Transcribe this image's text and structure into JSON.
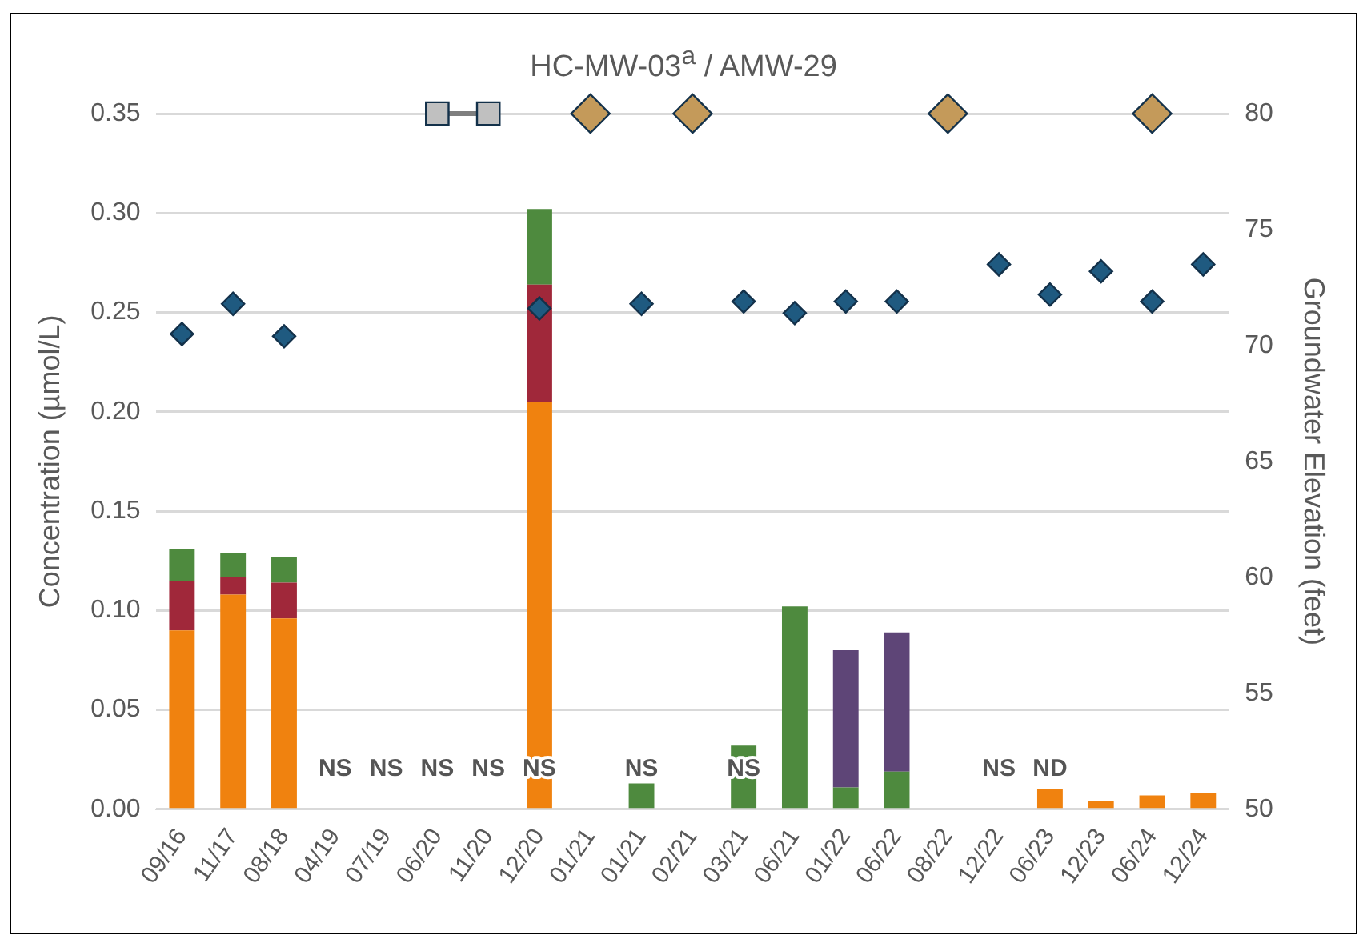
{
  "chart_data": {
    "type": "bar",
    "title": "HC-MW-03$^{a}$ / AMW-29",
    "ylabel": "Concentration (µmol/L)",
    "y2label": "Groundwater Elevation (feet)",
    "categories": [
      "09/16",
      "11/17",
      "08/18",
      "04/19",
      "07/19",
      "06/20",
      "11/20",
      "12/20",
      "01/21",
      "01/21",
      "02/21",
      "03/21",
      "06/21",
      "01/22",
      "06/22",
      "08/22",
      "12/22",
      "06/23",
      "12/23",
      "06/24",
      "12/24"
    ],
    "stacked": true,
    "series": [
      {
        "color": "#f0820f",
        "values": [
          0.09,
          0.108,
          0.096,
          null,
          null,
          null,
          null,
          0.205,
          null,
          null,
          null,
          null,
          null,
          null,
          null,
          null,
          null,
          0.01,
          0.004,
          0.007,
          0.008
        ],
        "value_labels": [
          null,
          null,
          null,
          "NS",
          "NS",
          "NS",
          "NS",
          "NS",
          null,
          "NS",
          null,
          "NS",
          null,
          null,
          null,
          null,
          "NS",
          "ND",
          null,
          null,
          null
        ]
      },
      {
        "color": "#a0283a",
        "values": [
          0.025,
          0.009,
          0.018,
          null,
          null,
          null,
          null,
          0.059,
          null,
          null,
          null,
          null,
          null,
          null,
          null,
          null,
          null,
          null,
          null,
          null,
          null
        ]
      },
      {
        "color": "#4e8a3e",
        "values": [
          0.016,
          0.012,
          0.013,
          null,
          null,
          null,
          null,
          0.038,
          null,
          0.013,
          null,
          0.032,
          0.102,
          0.011,
          0.019,
          null,
          null,
          null,
          null,
          null,
          null
        ]
      },
      {
        "color": "#5e4577",
        "values": [
          null,
          null,
          null,
          null,
          null,
          null,
          null,
          null,
          null,
          null,
          null,
          null,
          null,
          0.069,
          0.07,
          null,
          null,
          null,
          null,
          null,
          null
        ]
      },
      {
        "type": "scatter",
        "axis": "y2",
        "marker": "diamond",
        "color": "#1f5a80",
        "values": [
          70.5,
          71.8,
          70.4,
          null,
          null,
          null,
          null,
          71.6,
          null,
          71.8,
          null,
          71.9,
          71.4,
          71.9,
          71.9,
          null,
          73.5,
          72.2,
          73.2,
          71.9,
          73.5
        ]
      },
      {
        "type": "line",
        "axis": "y2",
        "marker": "square",
        "color": "#c0c0c0",
        "values": [
          null,
          null,
          null,
          null,
          null,
          80,
          80,
          null,
          null,
          null,
          null,
          null,
          null,
          null,
          null,
          null,
          null,
          null,
          null,
          null,
          null
        ]
      },
      {
        "type": "scatter",
        "axis": "y2",
        "marker": "diamond",
        "color": "#c49a5a",
        "values": [
          null,
          null,
          null,
          null,
          null,
          null,
          null,
          null,
          80,
          null,
          80,
          null,
          null,
          null,
          null,
          80,
          null,
          null,
          null,
          80,
          null
        ]
      }
    ],
    "ylim": [
      0,
      0.35
    ],
    "yticks": [
      {
        "value": 0,
        "label": "0.00"
      },
      {
        "value": 0.05,
        "label": "0.05"
      },
      {
        "value": 0.1,
        "label": "0.10"
      },
      {
        "value": 0.15,
        "label": "0.15"
      },
      {
        "value": 0.2,
        "label": "0.20"
      },
      {
        "value": 0.25,
        "label": "0.25"
      },
      {
        "value": 0.3,
        "label": "0.30"
      },
      {
        "value": 0.35,
        "label": "0.35"
      }
    ],
    "y2lim": [
      50,
      80
    ],
    "y2ticks": [
      50,
      55,
      60,
      65,
      70,
      75,
      80
    ],
    "grid": "y",
    "legend": false
  }
}
